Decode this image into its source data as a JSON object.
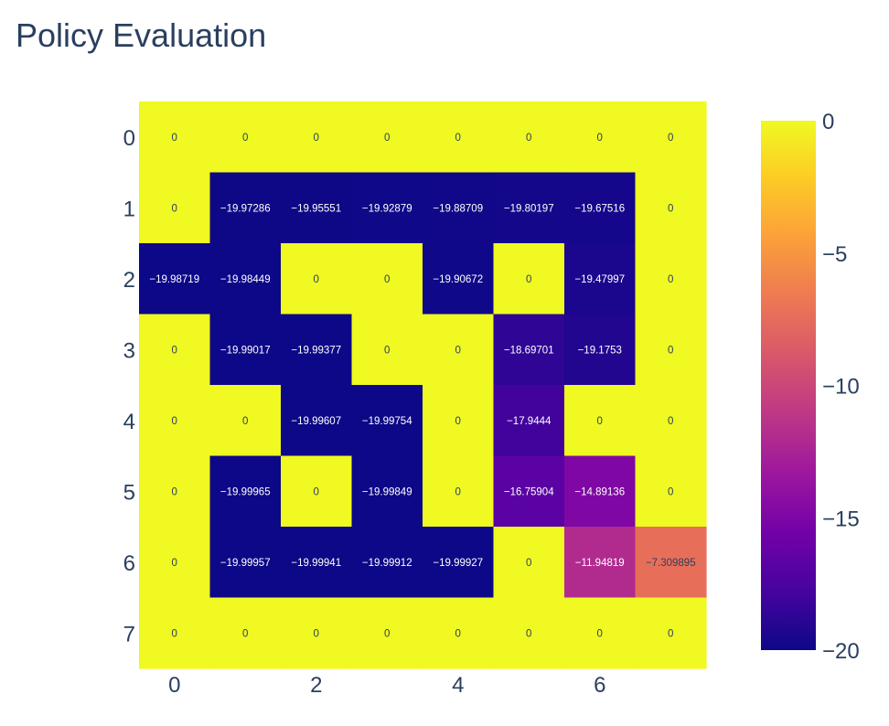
{
  "title": "Policy Evaluation",
  "chart_data": {
    "type": "heatmap",
    "title": "Policy Evaluation",
    "xlabel": "",
    "ylabel": "",
    "x": [
      0,
      1,
      2,
      3,
      4,
      5,
      6,
      7
    ],
    "y": [
      0,
      1,
      2,
      3,
      4,
      5,
      6,
      7
    ],
    "x_tick_labels": [
      "0",
      "2",
      "4",
      "6"
    ],
    "y_tick_labels": [
      "0",
      "1",
      "2",
      "3",
      "4",
      "5",
      "6",
      "7"
    ],
    "zlim": [
      -20,
      0
    ],
    "colorbar_ticks": [
      "0",
      "−5",
      "−10",
      "−15",
      "−20"
    ],
    "colorscale": "plasma",
    "values": [
      [
        0,
        0,
        0,
        0,
        0,
        0,
        0,
        0
      ],
      [
        0,
        -19.97286,
        -19.95551,
        -19.92879,
        -19.88709,
        -19.80197,
        -19.67516,
        0
      ],
      [
        -19.98719,
        -19.98449,
        0,
        0,
        -19.90672,
        0,
        -19.47997,
        0
      ],
      [
        0,
        -19.99017,
        -19.99377,
        0,
        0,
        -18.69701,
        -19.1753,
        0
      ],
      [
        0,
        0,
        -19.99607,
        -19.99754,
        0,
        -17.9444,
        0,
        0
      ],
      [
        0,
        -19.99965,
        0,
        -19.99849,
        0,
        -16.75904,
        -14.89136,
        0
      ],
      [
        0,
        -19.99957,
        -19.99941,
        -19.99912,
        -19.99927,
        0,
        -11.94819,
        -7.309895
      ],
      [
        0,
        0,
        0,
        0,
        0,
        0,
        0,
        0
      ]
    ],
    "labels": [
      [
        "0",
        "0",
        "0",
        "0",
        "0",
        "0",
        "0",
        "0"
      ],
      [
        "0",
        "−19.97286",
        "−19.95551",
        "−19.92879",
        "−19.88709",
        "−19.80197",
        "−19.67516",
        "0"
      ],
      [
        "−19.98719",
        "−19.98449",
        "0",
        "0",
        "−19.90672",
        "0",
        "−19.47997",
        "0"
      ],
      [
        "0",
        "−19.99017",
        "−19.99377",
        "0",
        "0",
        "−18.69701",
        "−19.1753",
        "0"
      ],
      [
        "0",
        "0",
        "−19.99607",
        "−19.99754",
        "0",
        "−17.9444",
        "0",
        "0"
      ],
      [
        "0",
        "−19.99965",
        "0",
        "−19.99849",
        "0",
        "−16.75904",
        "−14.89136",
        "0"
      ],
      [
        "0",
        "−19.99957",
        "−19.99941",
        "−19.99912",
        "−19.99927",
        "0",
        "−11.94819",
        "−7.309895"
      ],
      [
        "0",
        "0",
        "0",
        "0",
        "0",
        "0",
        "0",
        "0"
      ]
    ]
  }
}
